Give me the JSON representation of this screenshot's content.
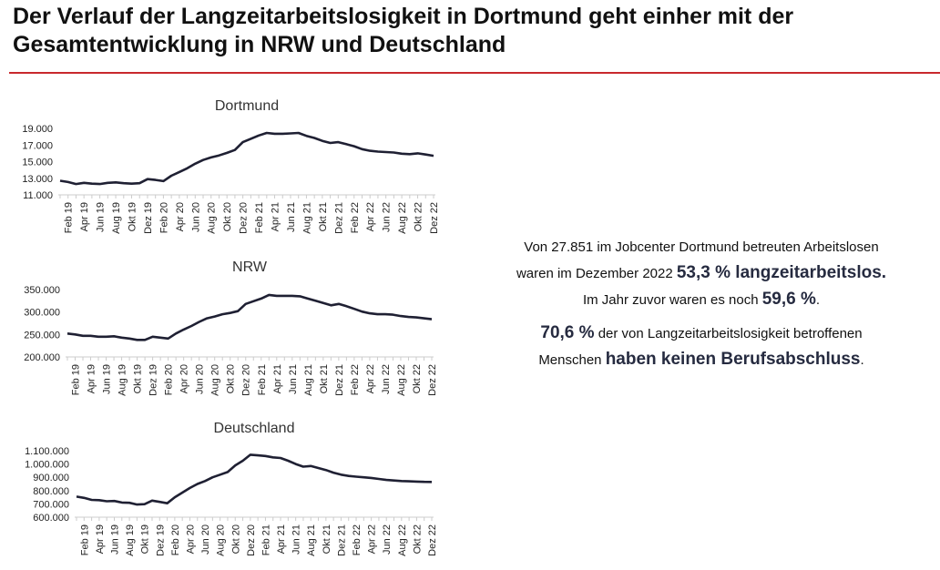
{
  "title": "Der Verlauf der Langzeitarbeitslosigkeit in Dortmund geht einher mit der Gesamtentwicklung in NRW und Deutschland",
  "colors": {
    "accent_rule": "#c8282d",
    "line": "#1f2033",
    "highlight": "#262b40",
    "axis": "#cccccc"
  },
  "info": {
    "p1_a": "Von 27.851 im Jobcenter Dortmund betreuten Arbeitslosen",
    "p1_b": "waren im Dezember 2022 ",
    "p1_hl1": "53,3 % langzeitarbeitslos.",
    "p1_c": "Im Jahr zuvor waren es noch ",
    "p1_hl2": "59,6 %",
    "p1_d": ".",
    "p2_hl1": "70,6 %",
    "p2_a": " der von Langzeitarbeitslosigkeit betroffenen",
    "p2_b": "Menschen ",
    "p2_hl2": "haben keinen Berufsabschluss",
    "p2_c": "."
  },
  "chart_data": [
    {
      "type": "line",
      "title": "Dortmund",
      "categories": [
        "Feb 19",
        "Apr 19",
        "Jun 19",
        "Aug 19",
        "Okt 19",
        "Dez 19",
        "Feb 20",
        "Apr 20",
        "Jun 20",
        "Aug 20",
        "Okt 20",
        "Dez 20",
        "Feb 21",
        "Apr 21",
        "Jun 21",
        "Aug 21",
        "Okt 21",
        "Dez 21",
        "Feb 22",
        "Apr 22",
        "Jun 22",
        "Aug 22",
        "Okt 22",
        "Dez 22"
      ],
      "x": [
        "Jan 19",
        "Feb 19",
        "Mär 19",
        "Apr 19",
        "Mai 19",
        "Jun 19",
        "Jul 19",
        "Aug 19",
        "Sep 19",
        "Okt 19",
        "Nov 19",
        "Dez 19",
        "Jan 20",
        "Feb 20",
        "Mär 20",
        "Apr 20",
        "Mai 20",
        "Jun 20",
        "Jul 20",
        "Aug 20",
        "Sep 20",
        "Okt 20",
        "Nov 20",
        "Dez 20",
        "Jan 21",
        "Feb 21",
        "Mär 21",
        "Apr 21",
        "Mai 21",
        "Jun 21",
        "Jul 21",
        "Aug 21",
        "Sep 21",
        "Okt 21",
        "Nov 21",
        "Dez 21",
        "Jan 22",
        "Feb 22",
        "Mär 22",
        "Apr 22",
        "Mai 22",
        "Jun 22",
        "Jul 22",
        "Aug 22",
        "Sep 22",
        "Okt 22",
        "Nov 22",
        "Dez 22"
      ],
      "values": [
        12700,
        12550,
        12300,
        12450,
        12350,
        12300,
        12450,
        12500,
        12400,
        12350,
        12400,
        12900,
        12800,
        12650,
        13300,
        13750,
        14200,
        14750,
        15200,
        15500,
        15750,
        16050,
        16400,
        17350,
        17750,
        18150,
        18450,
        18350,
        18350,
        18400,
        18450,
        18100,
        17850,
        17500,
        17250,
        17350,
        17100,
        16850,
        16500,
        16300,
        16200,
        16150,
        16100,
        15950,
        15900,
        16000,
        15850,
        15700
      ],
      "ylim": [
        11000,
        19000
      ],
      "yticks": [
        11000,
        13000,
        15000,
        17000,
        19000
      ],
      "ytick_labels": [
        "11.000",
        "13.000",
        "15.000",
        "17.000",
        "19.000"
      ],
      "grid": false
    },
    {
      "type": "line",
      "title": "NRW",
      "categories": [
        "Feb 19",
        "Apr 19",
        "Jun 19",
        "Aug 19",
        "Okt 19",
        "Dez 19",
        "Feb 20",
        "Apr 20",
        "Jun 20",
        "Aug 20",
        "Okt 20",
        "Dez 20",
        "Feb 21",
        "Apr 21",
        "Jun 21",
        "Aug 21",
        "Okt 21",
        "Dez 21",
        "Feb 22",
        "Apr 22",
        "Jun 22",
        "Aug 22",
        "Okt 22",
        "Dez 22"
      ],
      "x": [
        "Jan 19",
        "Feb 19",
        "Mär 19",
        "Apr 19",
        "Mai 19",
        "Jun 19",
        "Jul 19",
        "Aug 19",
        "Sep 19",
        "Okt 19",
        "Nov 19",
        "Dez 19",
        "Jan 20",
        "Feb 20",
        "Mär 20",
        "Apr 20",
        "Mai 20",
        "Jun 20",
        "Jul 20",
        "Aug 20",
        "Sep 20",
        "Okt 20",
        "Nov 20",
        "Dez 20",
        "Jan 21",
        "Feb 21",
        "Mär 21",
        "Apr 21",
        "Mai 21",
        "Jun 21",
        "Jul 21",
        "Aug 21",
        "Sep 21",
        "Okt 21",
        "Nov 21",
        "Dez 21",
        "Jan 22",
        "Feb 22",
        "Mär 22",
        "Apr 22",
        "Mai 22",
        "Jun 22",
        "Jul 22",
        "Aug 22",
        "Sep 22",
        "Okt 22",
        "Nov 22",
        "Dez 22"
      ],
      "values": [
        252000,
        250000,
        247000,
        247000,
        245000,
        245000,
        246000,
        243000,
        241000,
        238000,
        238000,
        245000,
        243000,
        241000,
        252000,
        261000,
        269000,
        278000,
        286000,
        290000,
        295000,
        298000,
        302000,
        318000,
        324000,
        330000,
        338000,
        336000,
        336000,
        336000,
        335000,
        330000,
        325000,
        320000,
        315000,
        318000,
        313000,
        307000,
        301000,
        297000,
        295000,
        295000,
        294000,
        291000,
        289000,
        288000,
        286000,
        284000
      ],
      "ylim": [
        200000,
        350000
      ],
      "yticks": [
        200000,
        250000,
        300000,
        350000
      ],
      "ytick_labels": [
        "200.000",
        "250.000",
        "300.000",
        "350.000"
      ],
      "grid": false
    },
    {
      "type": "line",
      "title": "Deutschland",
      "categories": [
        "Feb 19",
        "Apr 19",
        "Jun 19",
        "Aug 19",
        "Okt 19",
        "Dez 19",
        "Feb 20",
        "Apr 20",
        "Jun 20",
        "Aug 20",
        "Okt 20",
        "Dez 20",
        "Feb 21",
        "Apr 21",
        "Jun 21",
        "Aug 21",
        "Okt 21",
        "Dez 21",
        "Feb 22",
        "Apr 22",
        "Jun 22",
        "Aug 22",
        "Okt 22",
        "Dez 22"
      ],
      "x": [
        "Jan 19",
        "Feb 19",
        "Mär 19",
        "Apr 19",
        "Mai 19",
        "Jun 19",
        "Jul 19",
        "Aug 19",
        "Sep 19",
        "Okt 19",
        "Nov 19",
        "Dez 19",
        "Jan 20",
        "Feb 20",
        "Mär 20",
        "Apr 20",
        "Mai 20",
        "Jun 20",
        "Jul 20",
        "Aug 20",
        "Sep 20",
        "Okt 20",
        "Nov 20",
        "Dez 20",
        "Jan 21",
        "Feb 21",
        "Mär 21",
        "Apr 21",
        "Mai 21",
        "Jun 21",
        "Jul 21",
        "Aug 21",
        "Sep 21",
        "Okt 21",
        "Nov 21",
        "Dez 21",
        "Jan 22",
        "Feb 22",
        "Mär 22",
        "Apr 22",
        "Mai 22",
        "Jun 22",
        "Jul 22",
        "Aug 22",
        "Sep 22",
        "Okt 22",
        "Nov 22",
        "Dez 22"
      ],
      "values": [
        755000,
        745000,
        730000,
        728000,
        720000,
        722000,
        710000,
        708000,
        695000,
        698000,
        725000,
        715000,
        705000,
        750000,
        785000,
        820000,
        850000,
        872000,
        900000,
        920000,
        940000,
        990000,
        1025000,
        1070000,
        1065000,
        1060000,
        1050000,
        1045000,
        1025000,
        1000000,
        980000,
        985000,
        970000,
        955000,
        935000,
        920000,
        910000,
        905000,
        900000,
        895000,
        888000,
        880000,
        876000,
        872000,
        870000,
        868000,
        866000,
        865000
      ],
      "ylim": [
        600000,
        1100000
      ],
      "yticks": [
        600000,
        700000,
        800000,
        900000,
        1000000,
        1100000
      ],
      "ytick_labels": [
        "600.000",
        "700.000",
        "800.000",
        "900.000",
        "1.000.000",
        "1.100.000"
      ],
      "grid": false
    }
  ]
}
